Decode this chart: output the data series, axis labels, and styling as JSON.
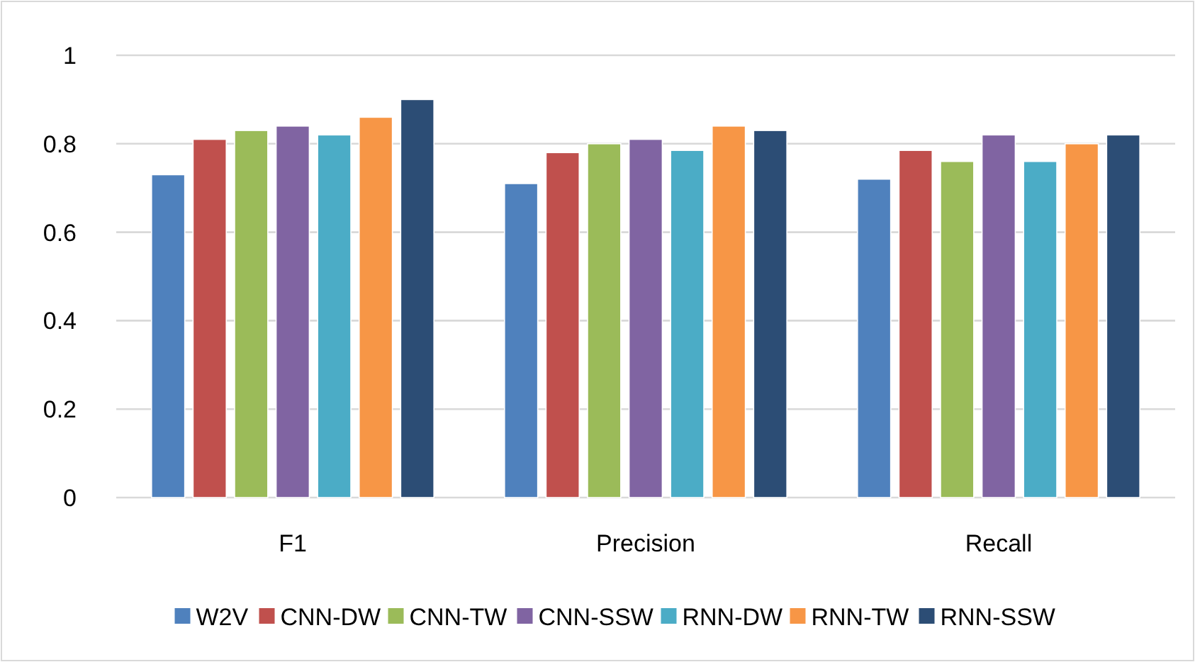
{
  "chart_data": {
    "type": "bar",
    "categories": [
      "F1",
      "Precision",
      "Recall"
    ],
    "series": [
      {
        "name": "W2V",
        "color": "#4f81bd",
        "values": [
          0.73,
          0.71,
          0.72
        ]
      },
      {
        "name": "CNN-DW",
        "color": "#c0504d",
        "values": [
          0.81,
          0.78,
          0.785
        ]
      },
      {
        "name": "CNN-TW",
        "color": "#9bbb59",
        "values": [
          0.83,
          0.8,
          0.76
        ]
      },
      {
        "name": "CNN-SSW",
        "color": "#8064a2",
        "values": [
          0.84,
          0.81,
          0.82
        ]
      },
      {
        "name": "RNN-DW",
        "color": "#4bacc6",
        "values": [
          0.82,
          0.785,
          0.76
        ]
      },
      {
        "name": "RNN-TW",
        "color": "#f79646",
        "values": [
          0.86,
          0.84,
          0.8
        ]
      },
      {
        "name": "RNN-SSW",
        "color": "#2c4d75",
        "values": [
          0.9,
          0.83,
          0.82
        ]
      }
    ],
    "ylim": [
      0,
      1
    ],
    "yticks": [
      0,
      0.2,
      0.4,
      0.6,
      0.8,
      1
    ],
    "grid": "y",
    "legend": "bottom"
  }
}
